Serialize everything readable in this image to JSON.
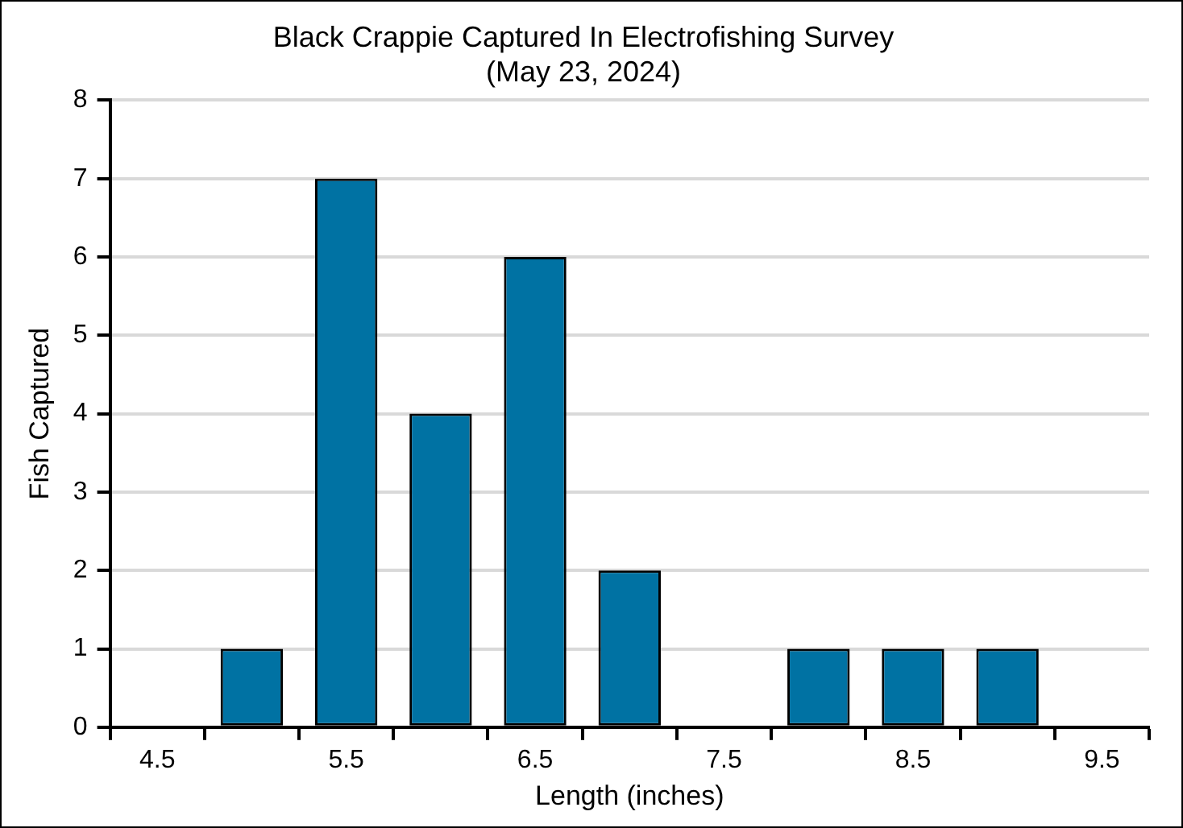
{
  "chart_data": {
    "type": "bar",
    "title": "Black Crappie Captured In Electrofishing Survey",
    "subtitle": "(May 23, 2024)",
    "xlabel": "Length (inches)",
    "ylabel": "Fish Captured",
    "categories": [
      "4.5",
      null,
      "5.5",
      null,
      "6.5",
      null,
      "7.5",
      null,
      "8.5",
      null,
      "9.5"
    ],
    "values": [
      0,
      1,
      7,
      4,
      6,
      2,
      0,
      1,
      1,
      1,
      0
    ],
    "color": "#0072a3",
    "ylim": [
      0,
      8
    ],
    "yticks": [
      0,
      1,
      2,
      3,
      4,
      5,
      6,
      7,
      8
    ],
    "grid": "y",
    "legend": false
  }
}
